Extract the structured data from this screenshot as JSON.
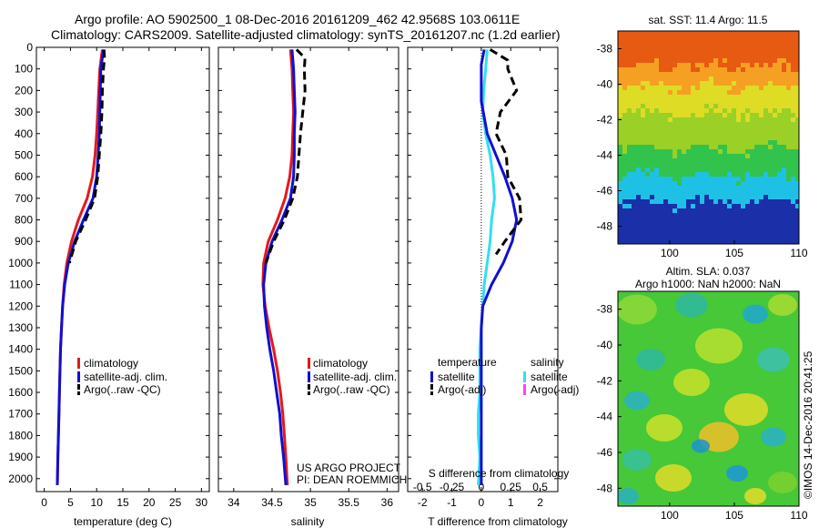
{
  "header": {
    "line1": "Argo profile: AO 5902500_1 08-Dec-2016 20161209_462 42.9568S 103.0611E",
    "line2": "Climatology: CARS2009. Satellite-adjusted climatology: synTS_20161207.nc (1.2d earlier)"
  },
  "side_label": "©IMOS 14-Dec-2016 20:41:25",
  "project": {
    "line1": "US ARGO PROJECT",
    "line2": "PI: DEAN ROEMMICH"
  },
  "colors": {
    "climatology": "#e31a1c",
    "satellite": "#1010d0",
    "argo": "#000000",
    "satellite_salinity": "#30e0f0",
    "argo_salinity": "#ff40ff"
  },
  "chart_data": [
    {
      "type": "line",
      "id": "temperature",
      "xlabel": "temperature (deg C)",
      "ylabel": "",
      "xlim": [
        -1.5,
        31.5
      ],
      "ylim": [
        0,
        2060
      ],
      "x_ticks": [
        0,
        5,
        10,
        15,
        20,
        25,
        30
      ],
      "y_ticks": [
        0,
        100,
        200,
        300,
        400,
        500,
        600,
        700,
        800,
        900,
        1000,
        1100,
        1200,
        1300,
        1400,
        1500,
        1600,
        1700,
        1800,
        1900,
        2000
      ],
      "y_inverted": true,
      "legend": [
        "climatology",
        "satellite-adj. clim.",
        "Argo(..raw -QC)"
      ],
      "series": [
        {
          "key": "climatology",
          "style": "solid",
          "points": [
            [
              11.1,
              10
            ],
            [
              10.6,
              100
            ],
            [
              10.4,
              200
            ],
            [
              10.2,
              300
            ],
            [
              10.0,
              400
            ],
            [
              9.7,
              500
            ],
            [
              9.2,
              600
            ],
            [
              8.2,
              700
            ],
            [
              6.5,
              800
            ],
            [
              5.2,
              900
            ],
            [
              4.3,
              1000
            ],
            [
              3.8,
              1100
            ],
            [
              3.5,
              1200
            ],
            [
              3.3,
              1300
            ],
            [
              3.1,
              1400
            ],
            [
              3.0,
              1500
            ],
            [
              2.9,
              1600
            ],
            [
              2.8,
              1700
            ],
            [
              2.7,
              1800
            ],
            [
              2.6,
              1900
            ],
            [
              2.5,
              2030
            ]
          ]
        },
        {
          "key": "satellite",
          "style": "solid",
          "points": [
            [
              11.3,
              10
            ],
            [
              10.8,
              100
            ],
            [
              10.7,
              200
            ],
            [
              10.6,
              300
            ],
            [
              10.5,
              400
            ],
            [
              10.3,
              500
            ],
            [
              10.0,
              600
            ],
            [
              9.3,
              700
            ],
            [
              7.5,
              800
            ],
            [
              5.8,
              900
            ],
            [
              4.6,
              1000
            ],
            [
              3.9,
              1100
            ],
            [
              3.5,
              1200
            ],
            [
              3.3,
              1300
            ],
            [
              3.1,
              1400
            ],
            [
              3.0,
              1500
            ],
            [
              2.9,
              1600
            ],
            [
              2.8,
              1700
            ],
            [
              2.7,
              1800
            ],
            [
              2.6,
              1900
            ],
            [
              2.5,
              2030
            ]
          ]
        },
        {
          "key": "argo",
          "style": "dashed",
          "points": [
            [
              11.4,
              10
            ],
            [
              11.5,
              50
            ],
            [
              11.3,
              100
            ],
            [
              11.1,
              200
            ],
            [
              11.0,
              300
            ],
            [
              10.8,
              400
            ],
            [
              10.5,
              500
            ],
            [
              10.2,
              600
            ],
            [
              9.6,
              700
            ],
            [
              7.9,
              800
            ],
            [
              6.0,
              900
            ],
            [
              4.8,
              1000
            ]
          ]
        }
      ]
    },
    {
      "type": "line",
      "id": "salinity",
      "xlabel": "salinity",
      "ylabel": "",
      "xlim": [
        33.8,
        36.15
      ],
      "ylim": [
        0,
        2060
      ],
      "x_ticks": [
        34,
        34.5,
        35,
        35.5,
        36
      ],
      "x_tick_labels": [
        "34",
        "34.5",
        "35",
        "35.5",
        "36"
      ],
      "y_inverted": true,
      "legend": [
        "climatology",
        "satellite-adj. clim.",
        "Argo(..raw -QC)"
      ],
      "series": [
        {
          "key": "climatology",
          "style": "solid",
          "points": [
            [
              34.74,
              10
            ],
            [
              34.76,
              100
            ],
            [
              34.77,
              200
            ],
            [
              34.78,
              300
            ],
            [
              34.77,
              400
            ],
            [
              34.76,
              500
            ],
            [
              34.73,
              600
            ],
            [
              34.67,
              700
            ],
            [
              34.57,
              800
            ],
            [
              34.45,
              900
            ],
            [
              34.39,
              1000
            ],
            [
              34.38,
              1100
            ],
            [
              34.41,
              1200
            ],
            [
              34.46,
              1300
            ],
            [
              34.52,
              1400
            ],
            [
              34.57,
              1500
            ],
            [
              34.61,
              1600
            ],
            [
              34.64,
              1700
            ],
            [
              34.66,
              1800
            ],
            [
              34.68,
              1900
            ],
            [
              34.7,
              2030
            ]
          ]
        },
        {
          "key": "satellite",
          "style": "solid",
          "points": [
            [
              34.76,
              10
            ],
            [
              34.78,
              100
            ],
            [
              34.79,
              200
            ],
            [
              34.8,
              300
            ],
            [
              34.79,
              400
            ],
            [
              34.79,
              500
            ],
            [
              34.78,
              600
            ],
            [
              34.74,
              700
            ],
            [
              34.63,
              800
            ],
            [
              34.5,
              900
            ],
            [
              34.42,
              1000
            ],
            [
              34.39,
              1100
            ],
            [
              34.4,
              1200
            ],
            [
              34.43,
              1300
            ],
            [
              34.47,
              1400
            ],
            [
              34.52,
              1500
            ],
            [
              34.56,
              1600
            ],
            [
              34.6,
              1700
            ],
            [
              34.62,
              1800
            ],
            [
              34.65,
              1900
            ],
            [
              34.68,
              2030
            ]
          ]
        },
        {
          "key": "argo",
          "style": "dashed",
          "points": [
            [
              34.82,
              10
            ],
            [
              34.93,
              50
            ],
            [
              34.92,
              100
            ],
            [
              34.93,
              200
            ],
            [
              34.9,
              300
            ],
            [
              34.87,
              400
            ],
            [
              34.85,
              500
            ],
            [
              34.83,
              600
            ],
            [
              34.77,
              700
            ],
            [
              34.66,
              800
            ],
            [
              34.52,
              900
            ],
            [
              34.42,
              1000
            ]
          ]
        }
      ]
    },
    {
      "type": "line",
      "id": "difference",
      "xlabel": "T difference from climatology",
      "xlabel_top": "S difference from climatology",
      "ylabel": "",
      "xlim": [
        -2.5,
        2.6
      ],
      "ylim": [
        0,
        2060
      ],
      "x_ticks": [
        -2,
        -1,
        0,
        1,
        2
      ],
      "x_tick_labels": [
        "-2",
        "-1",
        "0",
        "1",
        "2"
      ],
      "s_ticks": [
        -2.0,
        -1.0,
        0.0,
        1.0,
        2.0
      ],
      "s_tick_labels": [
        "-0.5",
        "-0.25",
        "0",
        "0.25",
        "0.5"
      ],
      "y_inverted": true,
      "legend_left_title": "temperature",
      "legend_right_title": "salinity",
      "legend_left": [
        "satellite",
        "Argo(-adj)"
      ],
      "legend_right": [
        "satellite",
        "Argo(-adj)"
      ],
      "series": [
        {
          "key": "satellite_salinity",
          "style": "solid",
          "points": [
            [
              0.2,
              10
            ],
            [
              0.15,
              100
            ],
            [
              0.08,
              200
            ],
            [
              0.05,
              300
            ],
            [
              0.15,
              400
            ],
            [
              0.3,
              500
            ],
            [
              0.4,
              600
            ],
            [
              0.45,
              700
            ],
            [
              0.35,
              800
            ],
            [
              0.3,
              900
            ],
            [
              0.2,
              1000
            ],
            [
              0.1,
              1100
            ],
            [
              0.05,
              1200
            ],
            [
              0.0,
              1300
            ],
            [
              -0.05,
              1400
            ],
            [
              -0.05,
              1500
            ],
            [
              -0.05,
              1600
            ],
            [
              -0.1,
              1700
            ],
            [
              -0.1,
              1800
            ],
            [
              -0.05,
              1900
            ],
            [
              -0.1,
              2030
            ]
          ]
        },
        {
          "key": "satellite",
          "style": "solid",
          "points": [
            [
              0.1,
              10
            ],
            [
              0.0,
              80
            ],
            [
              0.0,
              150
            ],
            [
              0.0,
              250
            ],
            [
              0.2,
              400
            ],
            [
              0.5,
              500
            ],
            [
              0.8,
              600
            ],
            [
              1.05,
              700
            ],
            [
              1.2,
              800
            ],
            [
              1.05,
              900
            ],
            [
              0.75,
              1000
            ],
            [
              0.35,
              1100
            ],
            [
              0.05,
              1200
            ],
            [
              0.0,
              1300
            ],
            [
              0.0,
              1400
            ],
            [
              0.0,
              1600
            ],
            [
              0.0,
              1800
            ],
            [
              0.0,
              1900
            ],
            [
              0.0,
              2030
            ]
          ]
        },
        {
          "key": "argo",
          "style": "dashed",
          "points": [
            [
              0.3,
              10
            ],
            [
              0.9,
              60
            ],
            [
              0.9,
              100
            ],
            [
              1.2,
              200
            ],
            [
              0.65,
              300
            ],
            [
              0.5,
              400
            ],
            [
              0.85,
              500
            ],
            [
              0.9,
              600
            ],
            [
              1.3,
              700
            ],
            [
              1.35,
              800
            ],
            [
              0.8,
              900
            ],
            [
              0.5,
              960
            ]
          ]
        }
      ]
    },
    {
      "type": "heatmap",
      "id": "sst_map",
      "title": "sat. SST: 11.4 Argo: 11.5",
      "xlim": [
        96,
        110
      ],
      "ylim": [
        -49,
        -37
      ],
      "x_ticks": [
        100,
        105,
        110
      ],
      "y_ticks": [
        -38,
        -40,
        -42,
        -44,
        -46,
        -48
      ],
      "description_rows": [
        {
          "lat_from": -37,
          "lat_to": -38.8,
          "color": "#e65a12"
        },
        {
          "lat_from": -38.8,
          "lat_to": -40,
          "color": "#f5a023"
        },
        {
          "lat_from": -40,
          "lat_to": -41.5,
          "color": "#dfdc25"
        },
        {
          "lat_from": -41.5,
          "lat_to": -43.5,
          "color": "#9bd026"
        },
        {
          "lat_from": -43.5,
          "lat_to": -45,
          "color": "#32c34c"
        },
        {
          "lat_from": -45,
          "lat_to": -46.5,
          "color": "#1fc0e6"
        },
        {
          "lat_from": -46.5,
          "lat_to": -49,
          "color": "#1a2fa8"
        }
      ]
    },
    {
      "type": "heatmap",
      "id": "sla_map",
      "title": "Altim. SLA: 0.037",
      "subtitle": "Argo h1000: NaN h2000: NaN",
      "xlim": [
        96,
        110
      ],
      "ylim": [
        -49,
        -37
      ],
      "x_ticks": [
        100,
        105,
        110
      ],
      "y_ticks": [
        -38,
        -40,
        -42,
        -44,
        -46,
        -48
      ],
      "base_color": "#46c838"
    }
  ]
}
